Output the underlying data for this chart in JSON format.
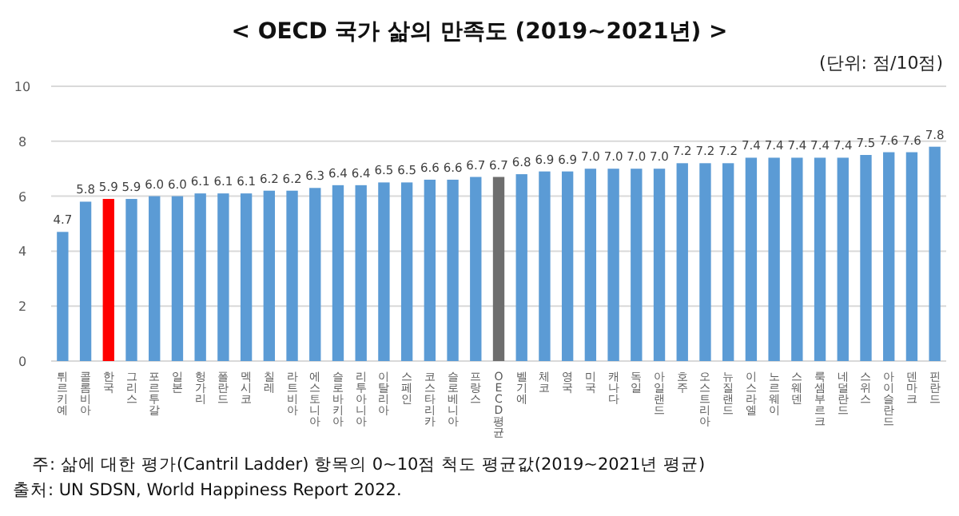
{
  "chart_data": {
    "type": "bar",
    "title": "< OECD 국가 삶의 만족도 (2019~2021년) >",
    "subtitle": "(단위: 점/10점)",
    "categories": [
      "튀르키예",
      "콜롬비아",
      "한국",
      "그리스",
      "포르투갈",
      "일본",
      "헝가리",
      "폴란드",
      "멕시코",
      "칠레",
      "라트비아",
      "에스토니아",
      "슬로바키아",
      "리투아니아",
      "이탈리아",
      "스페인",
      "코스타리카",
      "슬로베니아",
      "프랑스",
      "OECD평균",
      "벨기에",
      "체코",
      "영국",
      "미국",
      "캐나다",
      "독일",
      "아일랜드",
      "호주",
      "오스트리아",
      "뉴질랜드",
      "이스라엘",
      "노르웨이",
      "스웨덴",
      "룩셈부르크",
      "네덜란드",
      "스위스",
      "아이슬란드",
      "덴마크",
      "핀란드"
    ],
    "values": [
      4.7,
      5.8,
      5.9,
      5.9,
      6.0,
      6.0,
      6.1,
      6.1,
      6.1,
      6.2,
      6.2,
      6.3,
      6.4,
      6.4,
      6.5,
      6.5,
      6.6,
      6.6,
      6.7,
      6.7,
      6.8,
      6.9,
      6.9,
      7.0,
      7.0,
      7.0,
      7.0,
      7.2,
      7.2,
      7.2,
      7.4,
      7.4,
      7.4,
      7.4,
      7.4,
      7.5,
      7.6,
      7.6,
      7.8
    ],
    "value_labels": [
      "4.7",
      "5.8",
      "5.9",
      "5.9",
      "6.0",
      "6.0",
      "6.1",
      "6.1",
      "6.1",
      "6.2",
      "6.2",
      "6.3",
      "6.4",
      "6.4",
      "6.5",
      "6.5",
      "6.6",
      "6.6",
      "6.7",
      "6.7",
      "6.8",
      "6.9",
      "6.9",
      "7.0",
      "7.0",
      "7.0",
      "7.0",
      "7.2",
      "7.2",
      "7.2",
      "7.4",
      "7.4",
      "7.4",
      "7.4",
      "7.4",
      "7.5",
      "7.6",
      "7.6",
      "7.8"
    ],
    "colors": [
      "#5b9bd5",
      "#5b9bd5",
      "#ff0000",
      "#5b9bd5",
      "#5b9bd5",
      "#5b9bd5",
      "#5b9bd5",
      "#5b9bd5",
      "#5b9bd5",
      "#5b9bd5",
      "#5b9bd5",
      "#5b9bd5",
      "#5b9bd5",
      "#5b9bd5",
      "#5b9bd5",
      "#5b9bd5",
      "#5b9bd5",
      "#5b9bd5",
      "#5b9bd5",
      "#6e6e6e",
      "#5b9bd5",
      "#5b9bd5",
      "#5b9bd5",
      "#5b9bd5",
      "#5b9bd5",
      "#5b9bd5",
      "#5b9bd5",
      "#5b9bd5",
      "#5b9bd5",
      "#5b9bd5",
      "#5b9bd5",
      "#5b9bd5",
      "#5b9bd5",
      "#5b9bd5",
      "#5b9bd5",
      "#5b9bd5",
      "#5b9bd5",
      "#5b9bd5",
      "#5b9bd5"
    ],
    "ylim": [
      0,
      10
    ],
    "yticks": [
      0,
      2,
      4,
      6,
      8,
      10
    ],
    "grid": "y",
    "annotations": [
      "주: 삶에 대한 평가(Cantril Ladder) 항목의 0~10점 척도 평균값(2019~2021년 평균)",
      "출처: UN SDSN, World Happiness Report 2022."
    ]
  }
}
